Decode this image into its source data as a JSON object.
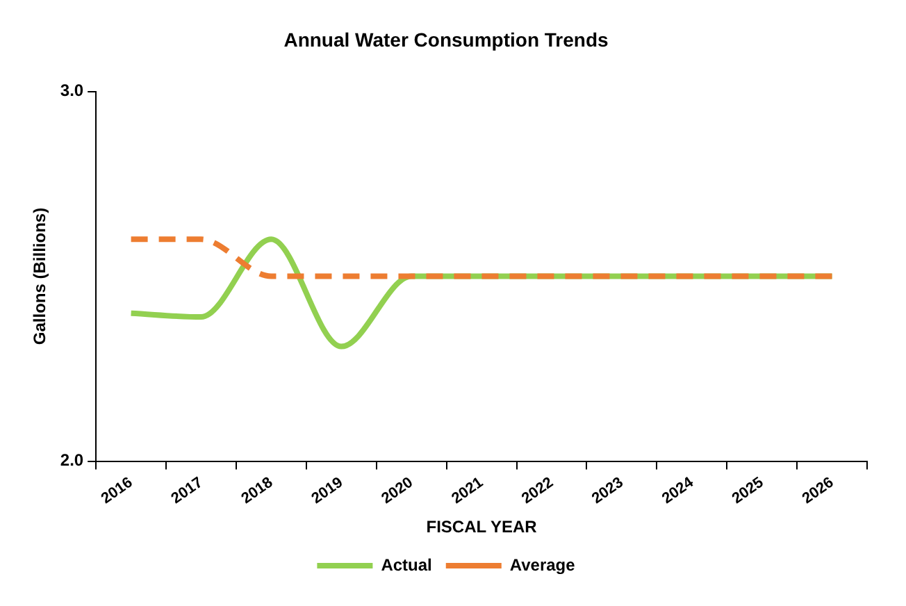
{
  "chart_data": {
    "type": "line",
    "title": "Annual Water Consumption Trends",
    "xlabel": "FISCAL YEAR",
    "ylabel": "Gallons (Billions)",
    "categories": [
      "2016",
      "2017",
      "2018",
      "2019",
      "2020",
      "2021",
      "2022",
      "2023",
      "2024",
      "2025",
      "2026"
    ],
    "series": [
      {
        "name": "Actual",
        "color": "#92d050",
        "values": [
          2.4,
          2.39,
          2.6,
          2.31,
          2.5,
          2.5,
          2.5,
          2.5,
          2.5,
          2.5,
          2.5
        ]
      },
      {
        "name": "Average",
        "color": "#ed7d31",
        "line_style": "dashed",
        "values": [
          2.6,
          2.6,
          2.5,
          2.5,
          2.5,
          2.5,
          2.5,
          2.5,
          2.5,
          2.5,
          2.5
        ]
      }
    ],
    "ylim": [
      2.0,
      3.0
    ],
    "yticks": [
      {
        "value": 2.0,
        "label": "2.0"
      },
      {
        "value": 3.0,
        "label": "3.0"
      }
    ],
    "grid": false,
    "legend": "bottom",
    "marker": "none"
  }
}
